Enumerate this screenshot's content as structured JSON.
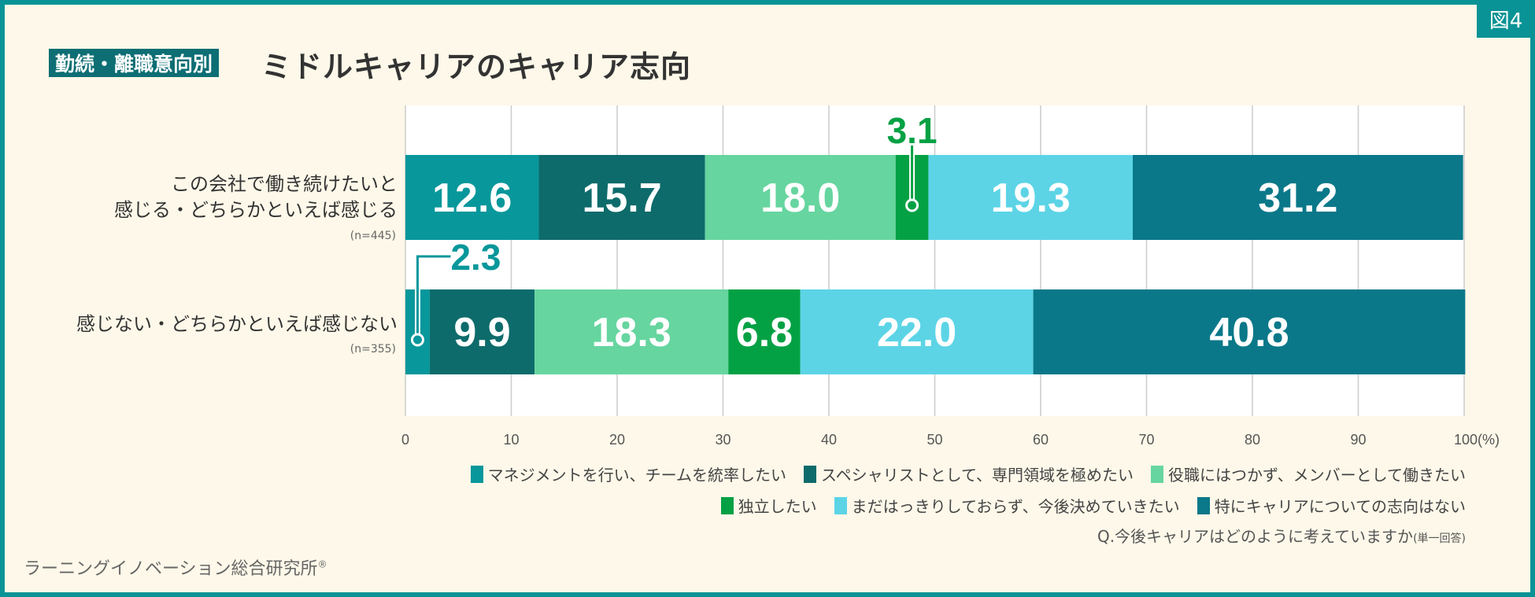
{
  "figure_label": "図4",
  "title_badge": "勤続・離職意向別",
  "title": "ミドルキャリアのキャリア志向",
  "question": "Q.今後キャリアはどのように考えていますか",
  "question_note": "(単一回答)",
  "footer": "ラーニングイノベーション総合研究所",
  "footer_mark": "®",
  "chart_data": {
    "type": "bar",
    "stacked": true,
    "orientation": "horizontal",
    "xlim": [
      0,
      100
    ],
    "x_ticks": [
      "0",
      "10",
      "20",
      "30",
      "40",
      "50",
      "60",
      "70",
      "80",
      "90",
      "100(%)"
    ],
    "grid": true,
    "legend_position": "bottom-right",
    "categories": [
      {
        "label_lines": [
          "この会社で働き続けたいと",
          "感じる・どちらかといえば感じる"
        ],
        "n": "(n=445)"
      },
      {
        "label_lines": [
          "感じない・どちらかといえば感じない"
        ],
        "n": "(n=355)"
      }
    ],
    "series": [
      {
        "name": "マネジメントを行い、チームを統率したい",
        "color": "#08979b",
        "values": [
          12.6,
          2.3
        ]
      },
      {
        "name": "スペシャリストとして、専門領域を極めたい",
        "color": "#0e6b6b",
        "values": [
          15.7,
          9.9
        ]
      },
      {
        "name": "役職にはつかず、メンバーとして働きたい",
        "color": "#66d59f",
        "values": [
          18.0,
          18.3
        ]
      },
      {
        "name": "独立したい",
        "color": "#04a144",
        "values": [
          3.1,
          6.8
        ]
      },
      {
        "name": "まだはっきりしておらず、今後決めていきたい",
        "color": "#5cd4e6",
        "values": [
          19.3,
          22.0
        ]
      },
      {
        "name": "特にキャリアについての志向はない",
        "color": "#0a7889",
        "values": [
          31.2,
          40.8
        ]
      }
    ],
    "value_labels": [
      [
        "12.6",
        "15.7",
        "18.0",
        "3.1",
        "19.3",
        "31.2"
      ],
      [
        "2.3",
        "9.9",
        "18.3",
        "6.8",
        "22.0",
        "40.8"
      ]
    ],
    "callouts": [
      {
        "row": 0,
        "series": 3,
        "text": "3.1",
        "color": "#04a144"
      },
      {
        "row": 1,
        "series": 0,
        "text": "2.3",
        "color": "#08979b"
      }
    ]
  }
}
